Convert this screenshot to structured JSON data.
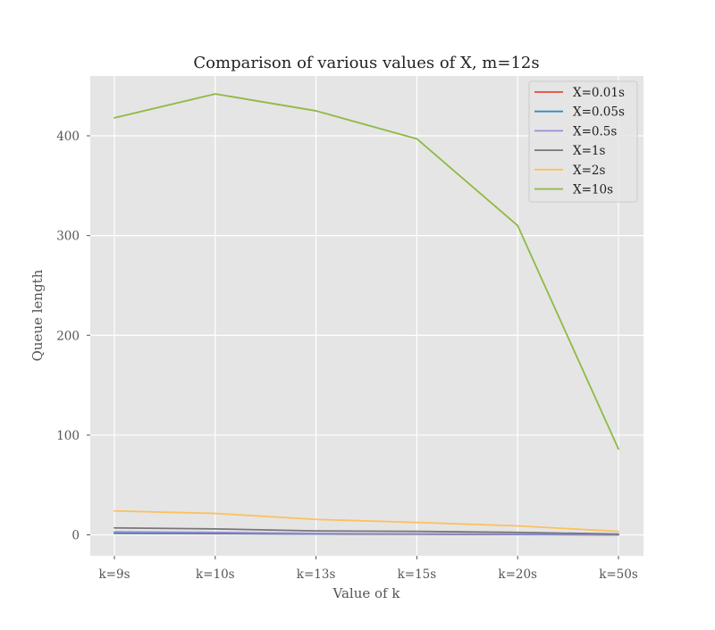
{
  "chart_data": {
    "type": "line",
    "title": "Comparison of various values of X, m=12s",
    "xlabel": "Value of k",
    "ylabel": "Queue length",
    "categories": [
      "k=9s",
      "k=10s",
      "k=13s",
      "k=15s",
      "k=20s",
      "k=50s"
    ],
    "ylim": [
      -21,
      460
    ],
    "yticks": [
      0,
      100,
      200,
      300,
      400
    ],
    "grid": true,
    "legend_position": "top-right",
    "series": [
      {
        "name": "X=0.01s",
        "color": "#E24A33",
        "values": [
          1.5,
          1.2,
          0.8,
          0.6,
          0.4,
          0.1
        ]
      },
      {
        "name": "X=0.05s",
        "color": "#348ABD",
        "values": [
          1.8,
          1.5,
          1.0,
          0.8,
          0.5,
          0.2
        ]
      },
      {
        "name": "X=0.5s",
        "color": "#988ED5",
        "values": [
          3.0,
          2.5,
          1.5,
          1.2,
          0.8,
          0.3
        ]
      },
      {
        "name": "X=1s",
        "color": "#777777",
        "values": [
          7,
          6,
          4,
          3.5,
          2.5,
          0.8
        ]
      },
      {
        "name": "X=2s",
        "color": "#FBC15E",
        "values": [
          24,
          21.5,
          15.5,
          12.5,
          9,
          3.5
        ]
      },
      {
        "name": "X=10s",
        "color": "#8EBA42",
        "values": [
          418,
          442,
          425,
          397,
          310,
          86
        ]
      }
    ]
  }
}
